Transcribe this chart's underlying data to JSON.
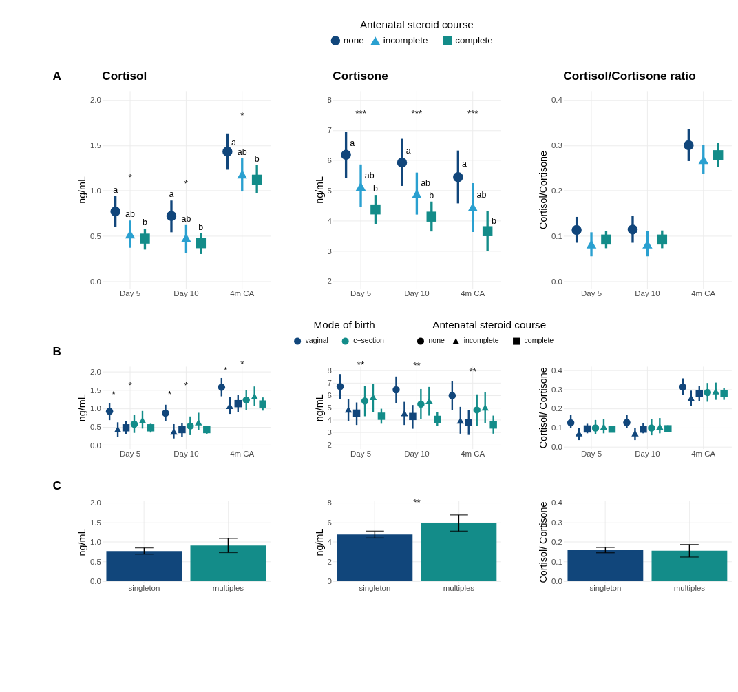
{
  "chart_data": [
    {
      "type": "scatter",
      "title": "Cortisol",
      "ylabel": "ng/mL",
      "categories": [
        "Day 5",
        "Day 10",
        "4m CA"
      ],
      "ylim": [
        -0.08,
        2.1
      ],
      "yticks": [
        {
          "value": 0,
          "label": "0.0"
        },
        {
          "value": 0.5,
          "label": "0.5"
        },
        {
          "value": 1,
          "label": "1.0"
        },
        {
          "value": 1.5,
          "label": "1.5"
        },
        {
          "value": 2,
          "label": "2.0"
        }
      ],
      "grid": true,
      "series": [
        {
          "color": "#11467b",
          "marker": "circle",
          "values": [
            0.77,
            0.72,
            1.43
          ],
          "errors": [
            [
              0.6,
              0.94
            ],
            [
              0.54,
              0.89
            ],
            [
              1.23,
              1.63
            ]
          ],
          "value_labels": [
            "a",
            "a",
            "a"
          ]
        },
        {
          "color": "#2aa0d0",
          "marker": "triangle",
          "values": [
            0.52,
            0.48,
            1.18
          ],
          "errors": [
            [
              0.37,
              0.67
            ],
            [
              0.31,
              0.62
            ],
            [
              0.99,
              1.36
            ]
          ],
          "value_labels": [
            "ab",
            "ab",
            "ab"
          ]
        },
        {
          "color": "#138c89",
          "marker": "square",
          "values": [
            0.47,
            0.42,
            1.12
          ],
          "errors": [
            [
              0.35,
              0.58
            ],
            [
              0.3,
              0.53
            ],
            [
              0.97,
              1.28
            ]
          ],
          "value_labels": [
            "b",
            "b",
            "b"
          ]
        }
      ],
      "annotations": [
        "A",
        "*",
        "*",
        "*"
      ]
    },
    {
      "type": "scatter",
      "title": "Cortisone",
      "ylabel": "ng/mL",
      "categories": [
        "Day 5",
        "Day 10",
        "4m CA"
      ],
      "ylim": [
        1.75,
        8.3
      ],
      "yticks": [
        2,
        3,
        4,
        5,
        6,
        7,
        8
      ],
      "grid": true,
      "legend": "top",
      "legend_title": "Antenatal steroid course",
      "series": [
        {
          "name": "none",
          "color": "#11467b",
          "marker": "circle",
          "values": [
            6.18,
            5.92,
            5.44
          ],
          "errors": [
            [
              5.4,
              6.95
            ],
            [
              5.15,
              6.71
            ],
            [
              4.57,
              6.32
            ]
          ],
          "value_labels": [
            "a",
            "a",
            "a"
          ]
        },
        {
          "name": "incomplete",
          "color": "#2aa0d0",
          "marker": "triangle",
          "values": [
            5.13,
            4.89,
            4.45
          ],
          "errors": [
            [
              4.45,
              5.86
            ],
            [
              4.2,
              5.59
            ],
            [
              3.62,
              5.24
            ]
          ],
          "value_labels": [
            "ab",
            "ab",
            "ab"
          ]
        },
        {
          "name": "complete",
          "color": "#138c89",
          "marker": "square",
          "values": [
            4.37,
            4.13,
            3.65
          ],
          "errors": [
            [
              3.89,
              4.85
            ],
            [
              3.64,
              4.63
            ],
            [
              2.99,
              4.32
            ]
          ],
          "value_labels": [
            "b",
            "b",
            "b"
          ]
        }
      ],
      "annotations": [
        "***",
        "***",
        "***"
      ]
    },
    {
      "type": "scatter",
      "title": "Cortisol/Cortisone ratio",
      "ylabel": "Cortisol/Cortisone",
      "categories": [
        "Day 5",
        "Day 10",
        "4m CA"
      ],
      "ylim": [
        -0.016,
        0.42
      ],
      "yticks": [
        {
          "value": 0,
          "label": "0.0"
        },
        {
          "value": 0.1,
          "label": "0.1"
        },
        {
          "value": 0.2,
          "label": "0.2"
        },
        {
          "value": 0.3,
          "label": "0.3"
        },
        {
          "value": 0.4,
          "label": "0.4"
        }
      ],
      "grid": true,
      "series": [
        {
          "color": "#11467b",
          "marker": "circle",
          "values": [
            0.113,
            0.114,
            0.3
          ],
          "errors": [
            [
              0.085,
              0.142
            ],
            [
              0.085,
              0.145
            ],
            [
              0.265,
              0.335
            ]
          ]
        },
        {
          "color": "#2aa0d0",
          "marker": "triangle",
          "values": [
            0.082,
            0.082,
            0.268
          ],
          "errors": [
            [
              0.055,
              0.108
            ],
            [
              0.055,
              0.11
            ],
            [
              0.237,
              0.3
            ]
          ]
        },
        {
          "color": "#138c89",
          "marker": "square",
          "values": [
            0.092,
            0.092,
            0.278
          ],
          "errors": [
            [
              0.073,
              0.11
            ],
            [
              0.073,
              0.112
            ],
            [
              0.252,
              0.305
            ]
          ]
        }
      ]
    },
    {
      "type": "scatter",
      "ylabel": "ng/mL",
      "categories": [
        "Day 5",
        "Day 10",
        "4m CA"
      ],
      "ylim": [
        -0.1,
        2.15
      ],
      "yticks": [
        {
          "value": 0,
          "label": "0.0"
        },
        {
          "value": 0.5,
          "label": "0.5"
        },
        {
          "value": 1,
          "label": "1.0"
        },
        {
          "value": 1.5,
          "label": "1.5"
        },
        {
          "value": 2,
          "label": "2.0"
        }
      ],
      "grid": true,
      "series": [
        {
          "color": "#11467b",
          "marker": "circle",
          "values": [
            0.92,
            0.87,
            1.58
          ],
          "errors": [
            [
              0.68,
              1.15
            ],
            [
              0.65,
              1.1
            ],
            [
              1.33,
              1.83
            ]
          ]
        },
        {
          "color": "#11467b",
          "marker": "triangle",
          "values": [
            0.43,
            0.37,
            1.07
          ],
          "errors": [
            [
              0.22,
              0.62
            ],
            [
              0.18,
              0.57
            ],
            [
              0.85,
              1.31
            ]
          ]
        },
        {
          "color": "#11467b",
          "marker": "square",
          "values": [
            0.47,
            0.42,
            1.13
          ],
          "errors": [
            [
              0.3,
              0.66
            ],
            [
              0.22,
              0.6
            ],
            [
              0.9,
              1.36
            ]
          ]
        },
        {
          "color": "#138c89",
          "marker": "circle",
          "values": [
            0.57,
            0.52,
            1.23
          ],
          "errors": [
            [
              0.33,
              0.83
            ],
            [
              0.27,
              0.78
            ],
            [
              0.95,
              1.51
            ]
          ]
        },
        {
          "color": "#138c89",
          "marker": "triangle",
          "values": [
            0.68,
            0.62,
            1.33
          ],
          "errors": [
            [
              0.45,
              0.93
            ],
            [
              0.4,
              0.88
            ],
            [
              1.07,
              1.6
            ]
          ]
        },
        {
          "color": "#138c89",
          "marker": "square",
          "values": [
            0.47,
            0.42,
            1.12
          ],
          "errors": [
            [
              0.34,
              0.58
            ],
            [
              0.29,
              0.53
            ],
            [
              0.94,
              1.3
            ]
          ]
        }
      ],
      "annotations": [
        "B",
        "*",
        "*",
        "*",
        "*",
        "*",
        "*"
      ]
    },
    {
      "type": "scatter",
      "ylabel": "ng/mL",
      "categories": [
        "Day 5",
        "Day 10",
        "4m CA"
      ],
      "ylim": [
        1.7,
        8.3
      ],
      "yticks": [
        2,
        3,
        4,
        5,
        6,
        7,
        8
      ],
      "grid": true,
      "legend": "top",
      "legend_title": "Mode of birth",
      "series": [
        {
          "name": "vaginal",
          "color": "#11467b",
          "marker": "circle",
          "values": [
            6.68,
            6.42,
            5.95
          ],
          "errors": [
            [
              5.65,
              7.68
            ],
            [
              5.35,
              7.48
            ],
            [
              4.8,
              7.1
            ]
          ]
        },
        {
          "color": "#11467b",
          "marker": "triangle",
          "values": [
            4.84,
            4.55,
            3.95
          ],
          "errors": [
            [
              3.9,
              5.65
            ],
            [
              3.6,
              5.45
            ],
            [
              2.9,
              5.05
            ]
          ]
        },
        {
          "color": "#11467b",
          "marker": "square",
          "values": [
            4.55,
            4.28,
            3.8
          ],
          "errors": [
            [
              3.6,
              5.4
            ],
            [
              3.3,
              5.2
            ],
            [
              2.8,
              4.8
            ]
          ]
        },
        {
          "name": "c−section",
          "color": "#138c89",
          "marker": "circle",
          "values": [
            5.52,
            5.27,
            4.8
          ],
          "errors": [
            [
              4.3,
              6.72
            ],
            [
              4.05,
              6.48
            ],
            [
              3.5,
              6.05
            ]
          ]
        },
        {
          "color": "#138c89",
          "marker": "triangle",
          "values": [
            5.85,
            5.52,
            5.0
          ],
          "errors": [
            [
              4.6,
              6.9
            ],
            [
              4.35,
              6.65
            ],
            [
              3.75,
              6.25
            ]
          ]
        },
        {
          "color": "#138c89",
          "marker": "square",
          "values": [
            4.3,
            4.05,
            3.6
          ],
          "errors": [
            [
              3.7,
              4.9
            ],
            [
              3.5,
              4.65
            ],
            [
              2.9,
              4.35
            ]
          ]
        }
      ],
      "annotations": [
        "Antenatal steroid course",
        "none",
        "incomplete",
        "complete",
        "**",
        "**",
        "**"
      ]
    },
    {
      "type": "scatter",
      "ylabel": "Cortisol/ Cortisone",
      "categories": [
        "Day 5",
        "Day 10",
        "4m CA"
      ],
      "ylim": [
        -0.01,
        0.42
      ],
      "yticks": [
        {
          "value": 0,
          "label": "0.0"
        },
        {
          "value": 0.1,
          "label": "0.1"
        },
        {
          "value": 0.2,
          "label": "0.2"
        },
        {
          "value": 0.3,
          "label": "0.3"
        },
        {
          "value": 0.4,
          "label": "0.4"
        }
      ],
      "grid": true,
      "series": [
        {
          "color": "#11467b",
          "marker": "circle",
          "values": [
            0.125,
            0.127,
            0.312
          ],
          "errors": [
            [
              0.1,
              0.167
            ],
            [
              0.1,
              0.168
            ],
            [
              0.27,
              0.357
            ]
          ]
        },
        {
          "color": "#11467b",
          "marker": "triangle",
          "values": [
            0.07,
            0.07,
            0.255
          ],
          "errors": [
            [
              0.035,
              0.1
            ],
            [
              0.035,
              0.1
            ],
            [
              0.215,
              0.293
            ]
          ]
        },
        {
          "color": "#11467b",
          "marker": "square",
          "values": [
            0.093,
            0.092,
            0.278
          ],
          "errors": [
            [
              0.07,
              0.12
            ],
            [
              0.07,
              0.125
            ],
            [
              0.24,
              0.318
            ]
          ]
        },
        {
          "color": "#138c89",
          "marker": "circle",
          "values": [
            0.098,
            0.098,
            0.283
          ],
          "errors": [
            [
              0.065,
              0.14
            ],
            [
              0.06,
              0.145
            ],
            [
              0.235,
              0.333
            ]
          ]
        },
        {
          "color": "#138c89",
          "marker": "triangle",
          "values": [
            0.105,
            0.105,
            0.29
          ],
          "errors": [
            [
              0.07,
              0.145
            ],
            [
              0.07,
              0.15
            ],
            [
              0.245,
              0.335
            ]
          ]
        },
        {
          "color": "#138c89",
          "marker": "square",
          "values": [
            0.092,
            0.094,
            0.278
          ],
          "errors": [
            [
              0.075,
              0.11
            ],
            [
              0.075,
              0.112
            ],
            [
              0.245,
              0.308
            ]
          ]
        }
      ]
    },
    {
      "type": "bar",
      "ylabel": "ng/mL",
      "categories": [
        "singleton",
        "multiples"
      ],
      "ylim": [
        -0.05,
        2.05
      ],
      "yticks": [
        {
          "value": 0,
          "label": "0.0"
        },
        {
          "value": 0.5,
          "label": "0.5"
        },
        {
          "value": 1,
          "label": "1.0"
        },
        {
          "value": 1.5,
          "label": "1.5"
        },
        {
          "value": 2,
          "label": "2.0"
        }
      ],
      "grid": true,
      "values": [
        0.77,
        0.91
      ],
      "colors": [
        "#11467b",
        "#138c89"
      ],
      "errors": [
        [
          0.69,
          0.85
        ],
        [
          0.73,
          1.09
        ]
      ],
      "annotations": [
        "C"
      ]
    },
    {
      "type": "bar",
      "ylabel": "ng/mL",
      "categories": [
        "singleton",
        "multiples"
      ],
      "ylim": [
        -0.2,
        8.2
      ],
      "yticks": [
        0,
        2,
        4,
        6,
        8
      ],
      "grid": true,
      "values": [
        4.75,
        5.9
      ],
      "colors": [
        "#11467b",
        "#138c89"
      ],
      "errors": [
        [
          4.4,
          5.1
        ],
        [
          5.1,
          6.75
        ]
      ],
      "annotations": [
        "**"
      ]
    },
    {
      "type": "bar",
      "ylabel": "Cortisol/ Cortisone",
      "categories": [
        "singleton",
        "multiples"
      ],
      "ylim": [
        -0.01,
        0.41
      ],
      "yticks": [
        {
          "value": 0,
          "label": "0.0"
        },
        {
          "value": 0.1,
          "label": "0.1"
        },
        {
          "value": 0.2,
          "label": "0.2"
        },
        {
          "value": 0.3,
          "label": "0.3"
        },
        {
          "value": 0.4,
          "label": "0.4"
        }
      ],
      "grid": true,
      "values": [
        0.158,
        0.155
      ],
      "colors": [
        "#11467b",
        "#138c89"
      ],
      "errors": [
        [
          0.145,
          0.172
        ],
        [
          0.123,
          0.187
        ]
      ]
    }
  ]
}
